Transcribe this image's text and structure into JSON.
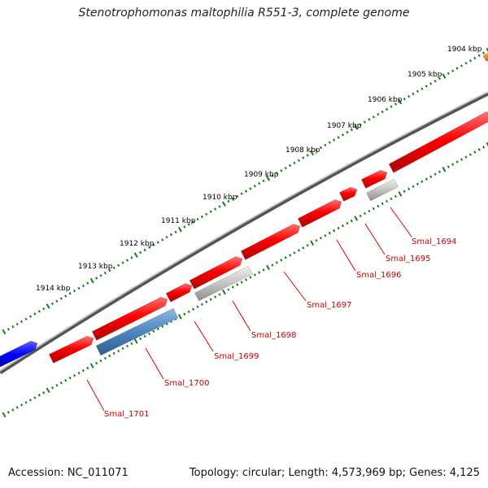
{
  "title": "Stenotrophomonas maltophilia R551-3, complete genome",
  "footer": {
    "accession": "Accession: NC_011071",
    "summary": "Topology: circular; Length: 4,573,969 bp; Genes: 4,125"
  },
  "ticks": [
    {
      "label": "1904 kbp"
    },
    {
      "label": "1905 kbp"
    },
    {
      "label": "1906 kbp"
    },
    {
      "label": "1907 kbp"
    },
    {
      "label": "1908 kbp"
    },
    {
      "label": "1909 kbp"
    },
    {
      "label": "1910 kbp"
    },
    {
      "label": "1911 kbp"
    },
    {
      "label": "1912 kbp"
    },
    {
      "label": "1913 kbp"
    },
    {
      "label": "1914 kbp"
    }
  ],
  "colors": {
    "backbone": "#7f7f7f",
    "ruler": "#1a7a1a",
    "forward_gene": "#ff0000",
    "reverse_gene_gray": "#bdbdbd",
    "reverse_gene_blue": "#4f86c0",
    "blue_feature": "#0000ff",
    "orange_feature": "#ff8c00",
    "label_line": "#dd0000",
    "label_text": "#cc0000"
  },
  "genes": [
    {
      "label": "Smal_1694"
    },
    {
      "label": "Smal_1695"
    },
    {
      "label": "Smal_1696"
    },
    {
      "label": "Smal_1697"
    },
    {
      "label": "Smal_1698"
    },
    {
      "label": "Smal_1699"
    },
    {
      "label": "Smal_1700"
    },
    {
      "label": "Smal_1701"
    }
  ]
}
